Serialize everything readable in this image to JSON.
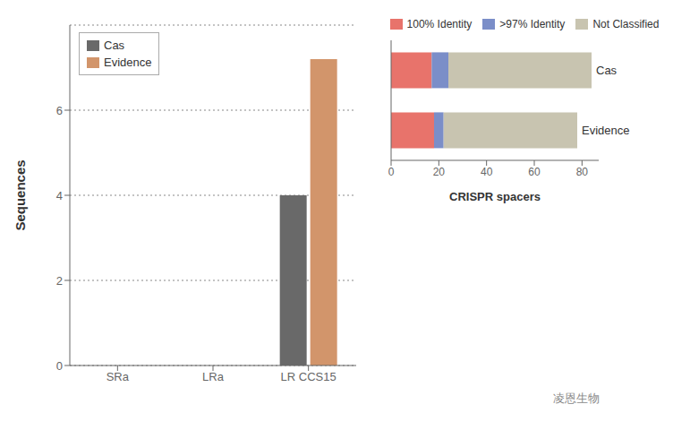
{
  "chart_data": [
    {
      "type": "bar",
      "categories": [
        "SRa",
        "LRa",
        "LR CCS15"
      ],
      "series": [
        {
          "name": "Cas",
          "color": "#696969",
          "values": [
            0,
            0,
            4
          ]
        },
        {
          "name": "Evidence",
          "color": "#D2956B",
          "values": [
            0,
            0,
            7.2
          ]
        }
      ],
      "ylabel": "Sequences",
      "ylim": [
        0,
        8
      ],
      "yticks": [
        0,
        2,
        4,
        6
      ],
      "grid": true,
      "legend": "upper left",
      "annotations": [
        "凌恩生物"
      ]
    },
    {
      "type": "bar",
      "orientation": "horizontal",
      "stacked": true,
      "categories": [
        "Cas",
        "Evidence"
      ],
      "series": [
        {
          "name": "100% Identity",
          "color": "#E8736B",
          "values": [
            17,
            18
          ]
        },
        {
          "name": ">97% Identity",
          "color": "#7B8EC8",
          "values": [
            7,
            4
          ]
        },
        {
          "name": "Not Classified",
          "color": "#C8C4B0",
          "values": [
            60,
            56
          ]
        }
      ],
      "xlabel": "CRISPR spacers",
      "xlim": [
        0,
        87
      ],
      "xticks": [
        0,
        20,
        40,
        60,
        80
      ],
      "grid": false,
      "legend": "upper center",
      "tick_labels": "x"
    }
  ]
}
